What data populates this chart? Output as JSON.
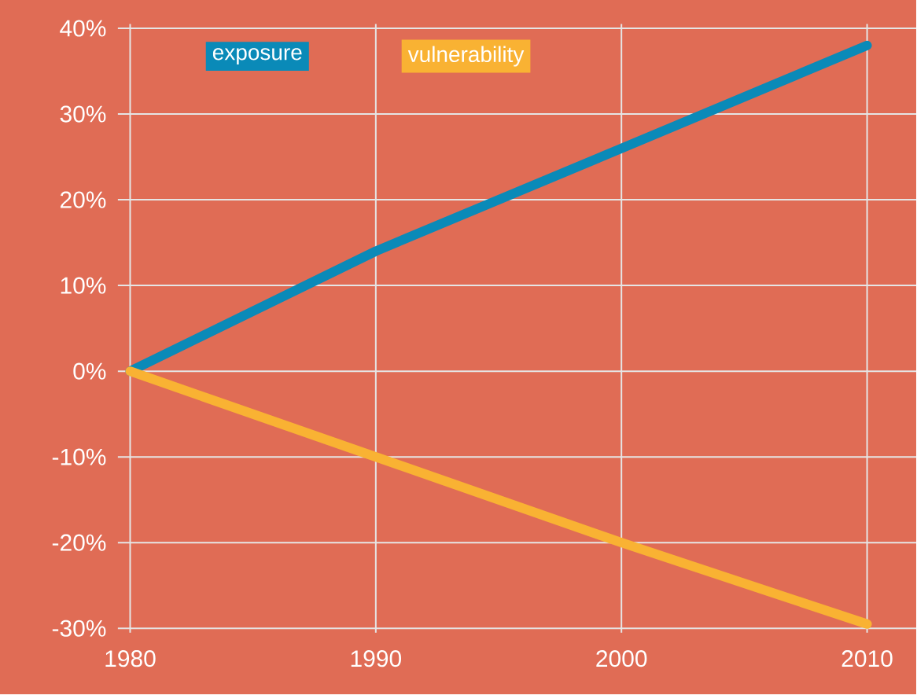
{
  "chart_data": {
    "type": "line",
    "x": [
      1980,
      1990,
      2000,
      2010
    ],
    "series": [
      {
        "name": "exposure",
        "color": "#0a8ab8",
        "values": [
          0,
          14,
          26,
          38
        ]
      },
      {
        "name": "vulnerability",
        "color": "#f9b233",
        "values": [
          0,
          -10,
          -20,
          -29.5
        ]
      }
    ],
    "xlim": [
      1979.5,
      2012
    ],
    "ylim": [
      -30.5,
      40.5
    ],
    "xticks": [
      1980,
      1990,
      2000,
      2010
    ],
    "yticks": [
      {
        "value": -30,
        "label": "-30%"
      },
      {
        "value": -20,
        "label": "-20%"
      },
      {
        "value": -10,
        "label": "-10%"
      },
      {
        "value": 0,
        "label": "0%"
      },
      {
        "value": 10,
        "label": "10%"
      },
      {
        "value": 20,
        "label": "20%"
      },
      {
        "value": 30,
        "label": "30%"
      },
      {
        "value": 40,
        "label": "40%"
      }
    ],
    "grid": true,
    "legend": "top left",
    "marker": "none",
    "line_style": "solid"
  }
}
